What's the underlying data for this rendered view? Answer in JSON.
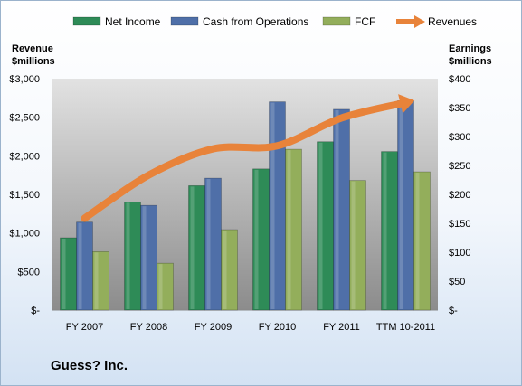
{
  "title": "Guess? Inc.",
  "colors": {
    "net_income": "#2e8b57",
    "cash_from_operations": "#4f6fa8",
    "fcf": "#93ae5b",
    "revenues": "#e8833a"
  },
  "legend": [
    {
      "label": "Net Income",
      "color": "#2e8b57",
      "kind": "box"
    },
    {
      "label": "Cash from Operations",
      "color": "#4f6fa8",
      "kind": "box"
    },
    {
      "label": "FCF",
      "color": "#93ae5b",
      "kind": "box"
    },
    {
      "label": "Revenues",
      "color": "#e8833a",
      "kind": "arrow"
    }
  ],
  "chart_data": {
    "type": "bar",
    "categories": [
      "FY 2007",
      "FY 2008",
      "FY 2009",
      "FY 2010",
      "FY 2011",
      "TTM 10-2011"
    ],
    "series": [
      {
        "name": "Net Income",
        "axis": "right",
        "values": [
          125,
          187,
          215,
          244,
          291,
          274
        ]
      },
      {
        "name": "Cash from Operations",
        "axis": "right",
        "values": [
          152,
          181,
          228,
          360,
          347,
          362
        ]
      },
      {
        "name": "FCF",
        "axis": "right",
        "values": [
          101,
          81,
          139,
          278,
          224,
          239
        ]
      },
      {
        "name": "Revenues",
        "axis": "left",
        "type": "line",
        "values": [
          1190,
          1750,
          2090,
          2130,
          2490,
          2690
        ]
      }
    ],
    "ylabel_left": "Revenue $millions",
    "ylabel_right": "Earnings $millions",
    "ylim_left": [
      0,
      3000
    ],
    "ylim_right": [
      0,
      400
    ],
    "yticks_left": [
      "$-",
      "$500",
      "$1,000",
      "$1,500",
      "$2,000",
      "$2,500",
      "$3,000"
    ],
    "yticks_right": [
      "$-",
      "$50",
      "$100",
      "$150",
      "$200",
      "$250",
      "$300",
      "$350",
      "$400"
    ],
    "grid": false,
    "legend_position": "top"
  }
}
